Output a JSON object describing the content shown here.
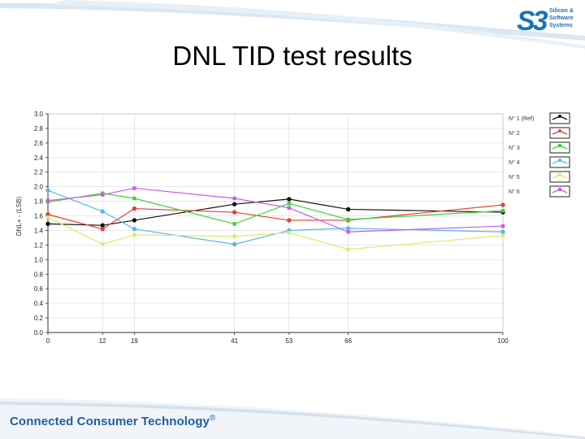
{
  "slide": {
    "title": "DNL TID test results",
    "logo": {
      "mark": "S3",
      "lines": [
        "Silicon &",
        "Software",
        "Systems"
      ]
    },
    "footer": {
      "text": "Connected Consumer Technology",
      "mark": "®"
    }
  },
  "colors": {
    "brand_blue": "#1f5f9c",
    "swoosh": "#cfe0ee"
  },
  "chart_data": {
    "type": "line",
    "title": "",
    "xlabel": "",
    "ylabel": "DNL+ - (LSB)",
    "x": [
      0,
      12,
      19,
      41,
      53,
      66,
      100
    ],
    "xticks": [
      "0",
      "12",
      "19",
      "41",
      "53",
      "66",
      "100"
    ],
    "yticks": [
      "0.0",
      "0.2",
      "0.4",
      "0.6",
      "0.8",
      "1.0",
      "1.2",
      "1.4",
      "1.6",
      "1.8",
      "2.0",
      "2.2",
      "2.4",
      "2.6",
      "2.8",
      "3.0"
    ],
    "ylim": [
      0,
      3.0
    ],
    "xlim": [
      0,
      100
    ],
    "grid": true,
    "legend_position": "right",
    "series": [
      {
        "name": "N° 1 (Ref)",
        "color": "#111111",
        "marker": "circle",
        "values": [
          1.49,
          1.47,
          1.54,
          1.76,
          1.83,
          1.69,
          1.65
        ]
      },
      {
        "name": "N° 2",
        "color": "#e0403a",
        "marker": "circle",
        "values": [
          1.62,
          1.42,
          1.7,
          1.65,
          1.54,
          1.54,
          1.75
        ]
      },
      {
        "name": "N° 3",
        "color": "#3fd13a",
        "marker": "square",
        "values": [
          1.79,
          1.91,
          1.84,
          1.49,
          1.77,
          1.55,
          1.67
        ]
      },
      {
        "name": "N° 4",
        "color": "#58b8ea",
        "marker": "circle",
        "values": [
          1.95,
          1.66,
          1.42,
          1.21,
          1.4,
          1.43,
          1.38
        ]
      },
      {
        "name": "N° 5",
        "color": "#dbeb6a",
        "marker": "square",
        "values": [
          1.58,
          1.21,
          1.34,
          1.32,
          1.37,
          1.14,
          1.33
        ]
      },
      {
        "name": "N° 6",
        "color": "#c75ee6",
        "marker": "square",
        "values": [
          1.81,
          1.89,
          1.98,
          1.84,
          1.71,
          1.38,
          1.46
        ]
      }
    ]
  }
}
